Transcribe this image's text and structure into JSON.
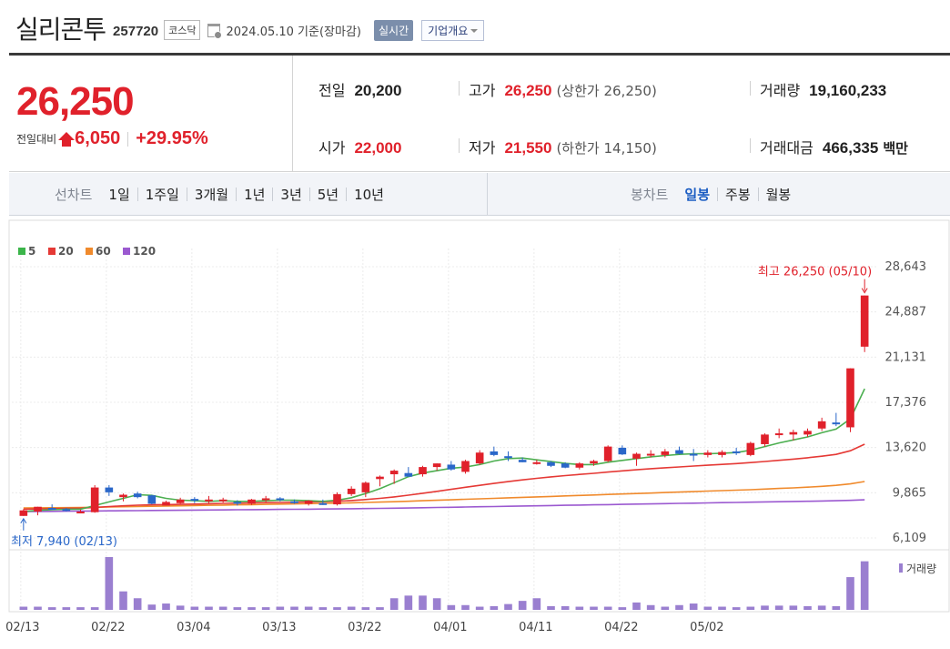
{
  "header": {
    "stock_name": "실리콘투",
    "code": "257720",
    "market": "코스닥",
    "date_text": "2024.05.10  기준(장마감)",
    "realtime_button": "실시간",
    "overview_button": "기업개요"
  },
  "quote": {
    "price": "26,250",
    "change_label": "전일대비",
    "change_value": "6,050",
    "change_rate": "+29.95%",
    "prev_close_label": "전일",
    "prev_close": "20,200",
    "high_label": "고가",
    "high": "26,250",
    "upper_limit": "(상한가 26,250)",
    "volume_label": "거래량",
    "volume": "19,160,233",
    "open_label": "시가",
    "open": "22,000",
    "low_label": "저가",
    "low": "21,550",
    "lower_limit": "(하한가 14,150)",
    "trade_value_label": "거래대금",
    "trade_value": "466,335",
    "trade_value_unit": "백만"
  },
  "tabs": {
    "line_chart_title": "선차트",
    "line_chart_items": [
      "1일",
      "1주일",
      "3개월",
      "1년",
      "3년",
      "5년",
      "10년"
    ],
    "candle_title": "봉차트",
    "candle_items": [
      "일봉",
      "주봉",
      "월봉"
    ],
    "active_candle": "일봉"
  },
  "colors": {
    "up": "#e0212b",
    "down": "#2a67c9",
    "ma5": "#4caf50",
    "ma20": "#e53935",
    "ma60": "#f08a2c",
    "ma120": "#9b59d0",
    "volume": "#9a7fd0"
  },
  "chart_data": {
    "type": "candlestick",
    "legend": [
      {
        "name": "5",
        "color": "#3bb54a"
      },
      {
        "name": "20",
        "color": "#e53935"
      },
      {
        "name": "60",
        "color": "#f08a2c"
      },
      {
        "name": "120",
        "color": "#9b59d0"
      }
    ],
    "y_ticks": [
      "28,643",
      "24,887",
      "21,131",
      "17,376",
      "13,620",
      "9,865",
      "6,109"
    ],
    "ylim": [
      6109,
      28643
    ],
    "x_ticks": [
      "02/13",
      "02/22",
      "03/04",
      "03/13",
      "03/22",
      "04/01",
      "04/11",
      "04/22",
      "05/02"
    ],
    "x_tick_index": [
      0,
      6,
      12,
      18,
      24,
      30,
      36,
      42,
      48
    ],
    "high_annotation": "최고 26,250 (05/10)",
    "low_annotation": "최저 7,940 (02/13)",
    "volume_label": "거래량",
    "candles": [
      [
        7940,
        8500,
        7940,
        8400
      ],
      [
        8300,
        8700,
        7990,
        8700
      ],
      [
        8600,
        8900,
        8450,
        8500
      ],
      [
        8500,
        8600,
        8300,
        8450
      ],
      [
        8300,
        8450,
        8150,
        8300
      ],
      [
        8250,
        10500,
        8200,
        10300
      ],
      [
        10300,
        10500,
        9600,
        9900
      ],
      [
        9500,
        9800,
        9150,
        9700
      ],
      [
        9800,
        9950,
        9400,
        9500
      ],
      [
        9650,
        9700,
        8900,
        8950
      ],
      [
        8800,
        9200,
        8800,
        9100
      ],
      [
        9000,
        9450,
        8950,
        9300
      ],
      [
        9350,
        9500,
        9000,
        9200
      ],
      [
        9150,
        9600,
        9000,
        9300
      ],
      [
        9250,
        9450,
        9050,
        9300
      ],
      [
        9100,
        9250,
        8800,
        9000
      ],
      [
        8950,
        9350,
        8850,
        9300
      ],
      [
        9300,
        9600,
        9100,
        9400
      ],
      [
        9400,
        9500,
        9150,
        9250
      ],
      [
        9150,
        9300,
        8950,
        9100
      ],
      [
        8950,
        9250,
        8800,
        9200
      ],
      [
        9000,
        9300,
        8850,
        8950
      ],
      [
        8900,
        9900,
        8800,
        9750
      ],
      [
        9750,
        10400,
        9600,
        10200
      ],
      [
        9900,
        10800,
        9500,
        10700
      ],
      [
        11000,
        11300,
        10400,
        11200
      ],
      [
        11400,
        11800,
        10600,
        11700
      ],
      [
        11500,
        12000,
        11200,
        11200
      ],
      [
        11400,
        12100,
        11200,
        12000
      ],
      [
        12000,
        12300,
        11700,
        12300
      ],
      [
        12200,
        12500,
        11700,
        11800
      ],
      [
        11600,
        12600,
        11450,
        12500
      ],
      [
        12300,
        13400,
        12200,
        13200
      ],
      [
        13300,
        13700,
        12900,
        13000
      ],
      [
        12900,
        13300,
        12500,
        12850
      ],
      [
        12600,
        12800,
        12400,
        12400
      ],
      [
        12400,
        12600,
        12200,
        12400
      ],
      [
        12400,
        12500,
        12000,
        12100
      ],
      [
        12300,
        12400,
        11900,
        11950
      ],
      [
        11950,
        12400,
        11800,
        12300
      ],
      [
        12300,
        12600,
        12100,
        12500
      ],
      [
        12500,
        13800,
        12400,
        13700
      ],
      [
        13600,
        13800,
        13000,
        13050
      ],
      [
        12700,
        13200,
        12100,
        13100
      ],
      [
        13000,
        13400,
        12800,
        13100
      ],
      [
        13000,
        13500,
        12800,
        13300
      ],
      [
        13400,
        13700,
        13050,
        13100
      ],
      [
        13100,
        13500,
        12500,
        13000
      ],
      [
        13000,
        13400,
        12800,
        13200
      ],
      [
        13000,
        13400,
        12800,
        13250
      ],
      [
        13300,
        13600,
        13000,
        13200
      ],
      [
        13000,
        14100,
        12900,
        14000
      ],
      [
        13900,
        14800,
        13700,
        14700
      ],
      [
        14700,
        15200,
        14400,
        14800
      ],
      [
        14700,
        15100,
        14200,
        14900
      ],
      [
        14700,
        15200,
        14500,
        15000
      ],
      [
        15200,
        16100,
        15000,
        15800
      ],
      [
        15700,
        16500,
        15400,
        15600
      ],
      [
        15300,
        20200,
        14900,
        20200
      ],
      [
        22000,
        26250,
        21550,
        26250
      ]
    ],
    "ma5": [
      8300,
      8400,
      8450,
      8500,
      8500,
      8800,
      9100,
      9400,
      9700,
      9650,
      9400,
      9250,
      9200,
      9150,
      9200,
      9150,
      9150,
      9200,
      9250,
      9250,
      9200,
      9150,
      9250,
      9450,
      9800,
      10200,
      10700,
      11200,
      11500,
      11700,
      11900,
      12000,
      12200,
      12500,
      12700,
      12750,
      12600,
      12450,
      12300,
      12200,
      12200,
      12400,
      12550,
      12700,
      12850,
      12950,
      13050,
      13100,
      13100,
      13150,
      13200,
      13400,
      13700,
      14000,
      14250,
      14500,
      14850,
      15150,
      16000,
      18500
    ],
    "ma20": [
      8500,
      8520,
      8540,
      8560,
      8580,
      8650,
      8720,
      8780,
      8830,
      8860,
      8880,
      8900,
      8920,
      8950,
      8980,
      9000,
      9020,
      9040,
      9060,
      9080,
      9100,
      9120,
      9160,
      9220,
      9300,
      9400,
      9520,
      9660,
      9820,
      9980,
      10150,
      10320,
      10480,
      10640,
      10790,
      10930,
      11060,
      11180,
      11290,
      11390,
      11480,
      11580,
      11680,
      11770,
      11860,
      11940,
      12010,
      12080,
      12150,
      12220,
      12290,
      12370,
      12460,
      12560,
      12660,
      12770,
      12900,
      13050,
      13350,
      13900
    ],
    "ma60": [
      8600,
      8610,
      8620,
      8630,
      8640,
      8660,
      8680,
      8700,
      8720,
      8740,
      8760,
      8780,
      8800,
      8820,
      8840,
      8860,
      8880,
      8900,
      8920,
      8940,
      8960,
      8980,
      9000,
      9030,
      9060,
      9090,
      9120,
      9160,
      9200,
      9240,
      9280,
      9320,
      9360,
      9400,
      9440,
      9480,
      9520,
      9560,
      9600,
      9640,
      9680,
      9720,
      9760,
      9800,
      9840,
      9880,
      9920,
      9960,
      10000,
      10040,
      10080,
      10120,
      10170,
      10220,
      10270,
      10330,
      10400,
      10480,
      10600,
      10800
    ],
    "ma120": [
      8300,
      8310,
      8320,
      8330,
      8340,
      8350,
      8360,
      8370,
      8380,
      8390,
      8400,
      8410,
      8420,
      8430,
      8440,
      8450,
      8460,
      8470,
      8480,
      8490,
      8500,
      8510,
      8520,
      8535,
      8550,
      8565,
      8580,
      8600,
      8620,
      8640,
      8660,
      8680,
      8700,
      8720,
      8740,
      8760,
      8780,
      8800,
      8820,
      8840,
      8860,
      8880,
      8900,
      8920,
      8940,
      8960,
      8980,
      9000,
      9020,
      9040,
      9060,
      9080,
      9100,
      9120,
      9140,
      9160,
      9180,
      9200,
      9230,
      9280
    ],
    "volume": [
      0.06,
      0.06,
      0.05,
      0.05,
      0.05,
      0.05,
      1.0,
      0.35,
      0.22,
      0.1,
      0.12,
      0.08,
      0.06,
      0.06,
      0.06,
      0.05,
      0.05,
      0.05,
      0.06,
      0.06,
      0.06,
      0.05,
      0.05,
      0.06,
      0.05,
      0.05,
      0.22,
      0.27,
      0.27,
      0.22,
      0.09,
      0.09,
      0.06,
      0.07,
      0.11,
      0.17,
      0.22,
      0.07,
      0.07,
      0.06,
      0.06,
      0.06,
      0.05,
      0.14,
      0.09,
      0.06,
      0.09,
      0.12,
      0.06,
      0.06,
      0.05,
      0.06,
      0.08,
      0.08,
      0.08,
      0.07,
      0.08,
      0.07,
      0.62,
      0.92
    ]
  }
}
